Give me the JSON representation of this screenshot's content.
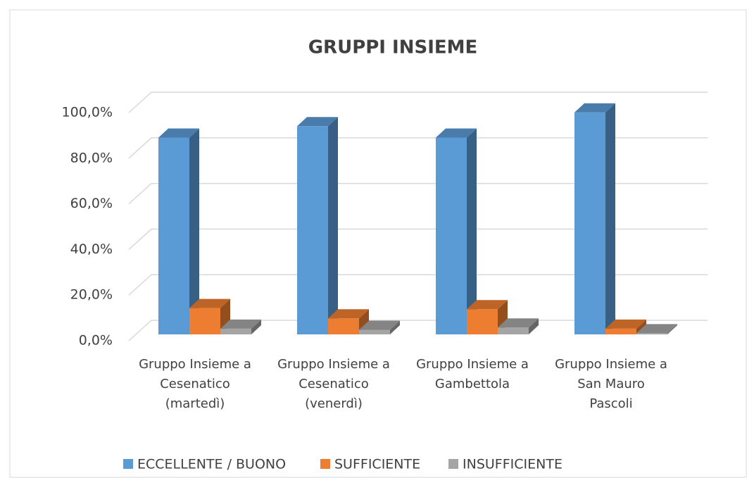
{
  "chart_data": {
    "type": "bar3d",
    "title": "GRUPPI INSIEME",
    "categories": [
      [
        "Gruppo Insieme a",
        "Cesenatico",
        "(martedì)"
      ],
      [
        "Gruppo Insieme a",
        "Cesenatico",
        "(venerdì)"
      ],
      [
        "Gruppo Insieme a",
        "Gambettola"
      ],
      [
        "Gruppo Insieme a",
        "San Mauro",
        "Pascoli"
      ]
    ],
    "series": [
      {
        "name": "ECCELLENTE / BUONO",
        "color": "#5b9bd5",
        "values": [
          86,
          91,
          86,
          97
        ]
      },
      {
        "name": "SUFFICIENTE",
        "color": "#ed7d31",
        "values": [
          11.5,
          7,
          11,
          2.5
        ]
      },
      {
        "name": "INSUFFICIENTE",
        "color": "#a5a5a5",
        "values": [
          2.5,
          2,
          3,
          0.5
        ]
      }
    ],
    "ylim": [
      0,
      100
    ],
    "yticks": [
      {
        "value": 0,
        "label": "0,0%"
      },
      {
        "value": 20,
        "label": "20,0%"
      },
      {
        "value": 40,
        "label": "40,0%"
      },
      {
        "value": 60,
        "label": "60,0%"
      },
      {
        "value": 80,
        "label": "80,0%"
      },
      {
        "value": 100,
        "label": "100,0%"
      }
    ],
    "grid": true,
    "legend": "bottom"
  }
}
